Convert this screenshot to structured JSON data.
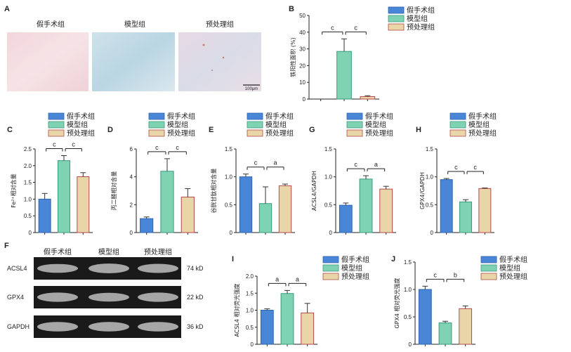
{
  "colors": {
    "sham": "#4a86d8",
    "model": "#7fd3b3",
    "pre": "#e8d6a8",
    "sham_edge": "#2f63ad",
    "model_edge": "#3a9a7a",
    "pre_edge": "#b5484a",
    "err": "#333333"
  },
  "panel_a": {
    "label": "A",
    "groups": [
      "假手术组",
      "模型组",
      "预处理组"
    ],
    "scale_bar": "100μm"
  },
  "panel_f": {
    "label": "F",
    "groups": [
      "假手术组",
      "模型组",
      "预处理组"
    ],
    "blots": [
      {
        "name": "ACSL4",
        "kd": "74 kD",
        "intensity": [
          0.72,
          0.95,
          0.82
        ]
      },
      {
        "name": "GPX4",
        "kd": "22 kD",
        "intensity": [
          0.85,
          0.7,
          0.85
        ]
      },
      {
        "name": "GAPDH",
        "kd": "36 kD",
        "intensity": [
          0.9,
          0.9,
          0.9
        ]
      }
    ]
  },
  "legend": [
    "假手术组",
    "模型组",
    "预处理组"
  ],
  "chart_data": [
    {
      "id": "B",
      "type": "bar",
      "categories": [
        "假手术组",
        "模型组",
        "预处理组"
      ],
      "values": [
        0,
        28.5,
        1.5
      ],
      "errors": [
        0,
        7.5,
        0.5
      ],
      "ylabel": "铁阳性面积 (%)",
      "ylim": [
        0,
        50
      ],
      "yticks": [
        "0",
        "10",
        "20",
        "30",
        "40",
        "50"
      ],
      "sig": [
        "c",
        "c"
      ]
    },
    {
      "id": "C",
      "type": "bar",
      "categories": [
        "假手术组",
        "模型组",
        "预处理组"
      ],
      "values": [
        1.0,
        2.15,
        1.67
      ],
      "errors": [
        0.17,
        0.15,
        0.12
      ],
      "ylabel": "Fe²⁺相对含量",
      "ylim": [
        0,
        2.5
      ],
      "yticks": [
        "0",
        "0.5",
        "1.0",
        "1.5",
        "2.0",
        "2.5"
      ],
      "sig": [
        "c",
        "c"
      ]
    },
    {
      "id": "D",
      "type": "bar",
      "categories": [
        "假手术组",
        "模型组",
        "预处理组"
      ],
      "values": [
        1.0,
        4.4,
        2.55
      ],
      "errors": [
        0.12,
        0.9,
        0.6
      ],
      "ylabel": "丙二醛相对含量",
      "ylim": [
        0,
        6
      ],
      "yticks": [
        "0",
        "2",
        "4",
        "6"
      ],
      "sig": [
        "c",
        "c"
      ]
    },
    {
      "id": "E",
      "type": "bar",
      "categories": [
        "假手术组",
        "模型组",
        "预处理组"
      ],
      "values": [
        1.0,
        0.52,
        0.84
      ],
      "errors": [
        0.05,
        0.3,
        0.03
      ],
      "ylabel": "谷胱甘肽相对含量",
      "ylim": [
        0,
        1.5
      ],
      "yticks": [
        "0",
        "0.5",
        "1.0",
        "1.5"
      ],
      "sig": [
        "c",
        "a"
      ]
    },
    {
      "id": "G",
      "type": "bar",
      "categories": [
        "假手术组",
        "模型组",
        "预处理组"
      ],
      "values": [
        0.49,
        0.96,
        0.78
      ],
      "errors": [
        0.04,
        0.06,
        0.05
      ],
      "ylabel": "ACSL4/GAPDH",
      "ylim": [
        0,
        1.5
      ],
      "yticks": [
        "0",
        "0.5",
        "1.0",
        "1.5"
      ],
      "sig": [
        "c",
        "a"
      ]
    },
    {
      "id": "H",
      "type": "bar",
      "categories": [
        "假手术组",
        "模型组",
        "预处理组"
      ],
      "values": [
        0.95,
        0.55,
        0.79
      ],
      "errors": [
        0.02,
        0.04,
        0.01
      ],
      "ylabel": "GPX4/GAPDH",
      "ylim": [
        0,
        1.5
      ],
      "yticks": [
        "0",
        "0.5",
        "1.0",
        "1.5"
      ],
      "sig": [
        "c",
        "c"
      ]
    },
    {
      "id": "I",
      "type": "bar",
      "categories": [
        "假手术组",
        "模型组",
        "预处理组"
      ],
      "values": [
        1.0,
        1.49,
        0.92
      ],
      "errors": [
        0.04,
        0.09,
        0.28
      ],
      "ylabel": "ACSL4 相对荧光强度",
      "ylim": [
        0,
        2.0
      ],
      "yticks": [
        "0",
        "0.5",
        "1.0",
        "1.5",
        "2.0"
      ],
      "sig": [
        "a",
        "a"
      ]
    },
    {
      "id": "J",
      "type": "bar",
      "categories": [
        "假手术组",
        "模型组",
        "预处理组"
      ],
      "values": [
        1.0,
        0.39,
        0.65
      ],
      "errors": [
        0.06,
        0.03,
        0.05
      ],
      "ylabel": "GPX4 相对荧光强度",
      "ylim": [
        0,
        1.5
      ],
      "yticks": [
        "0",
        "0.5",
        "1.0",
        "1.5"
      ],
      "sig": [
        "c",
        "b"
      ]
    }
  ]
}
